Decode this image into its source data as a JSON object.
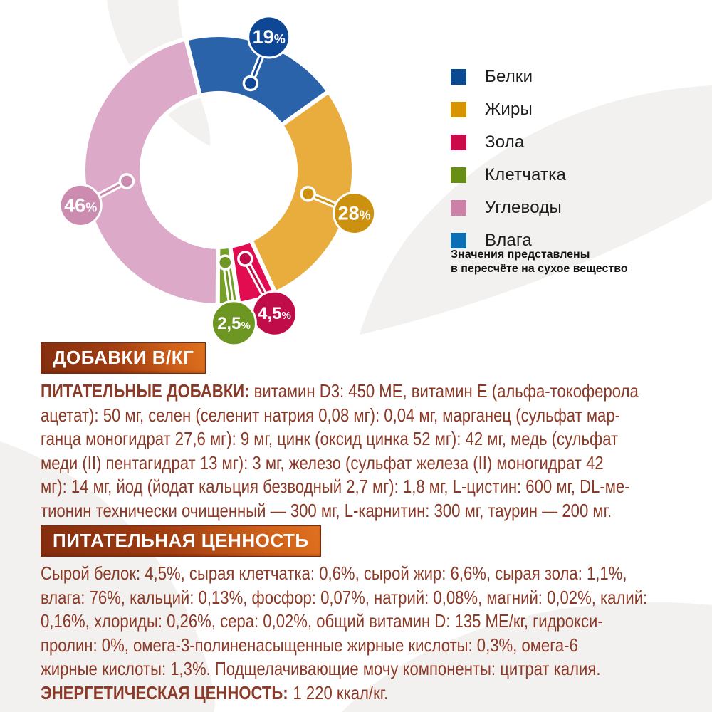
{
  "chart_data": {
    "type": "pie",
    "subtype": "donut",
    "title": "",
    "start_angle_deg": -14,
    "unit": "%",
    "slices": [
      {
        "label": "Белки",
        "value": 19,
        "display": "19%",
        "color": "#2b63ab",
        "badge_color": "#0d4795"
      },
      {
        "label": "Жиры",
        "value": 28,
        "display": "28%",
        "color": "#e9ad3e",
        "badge_color": "#cd9110"
      },
      {
        "label": "Зола",
        "value": 4.5,
        "display": "4,5%",
        "color": "#e20c51",
        "badge_color": "#c00d4a"
      },
      {
        "label": "Клетчатка",
        "value": 2.5,
        "display": "2,5%",
        "color": "#76a126",
        "badge_color": "#6d9722"
      },
      {
        "label": "Углеводы",
        "value": 46,
        "display": "46%",
        "color": "#dda9c8",
        "badge_color": "#cb8cb0"
      }
    ],
    "legend_position": "right",
    "legend": [
      {
        "label": "Белки",
        "color": "#0a4a93"
      },
      {
        "label": "Жиры",
        "color": "#d89400"
      },
      {
        "label": "Зола",
        "color": "#cc0a4a"
      },
      {
        "label": "Клетчатка",
        "color": "#678f15"
      },
      {
        "label": "Углеводы",
        "color": "#cc82a8"
      },
      {
        "label": "Влага",
        "color": "#0a6fb4"
      }
    ],
    "note_lines": [
      "Значения представлены",
      "в пересчёте на сухое вещество"
    ]
  },
  "sections": {
    "additives": {
      "header": "ДОБАВКИ В/КГ",
      "lead": "ПИТАТЕЛЬНЫЕ ДОБАВКИ:",
      "lines": [
        "витамин D3: 450 МЕ, витамин Е (альфа-токоферола",
        "ацетат): 50 мг, селен (селенит натрия 0,08 мг): 0,04 мг, марганец (сульфат мар-",
        "ганца моногидрат 27,6 мг): 9 мг, цинк (оксид цинка 52 мг): 42 мг, медь (сульфат",
        "меди (II) пентагидрат 13 мг): 3 мг, железо (сульфат железа (II) моногидрат 42",
        "мг): 14 мг, йод (йодат кальция безводный 2,7 мг): 1,8 мг, L-цистин: 600 мг, DL-ме-",
        "тионин технически очищенный — 300 мг, L-карнитин: 300 мг, таурин — 200 мг."
      ]
    },
    "nutrition": {
      "header": "ПИТАТЕЛЬНАЯ ЦЕННОСТЬ",
      "lines": [
        "Сырой белок: 4,5%, сырая клетчатка: 0,6%, сырой жир: 6,6%, сырая зола: 1,1%,",
        "влага: 76%, кальций: 0,13%, фосфор: 0,07%, натрий: 0,08%, магний: 0,02%, калий:",
        "0,16%, хлориды: 0,26%, сера: 0,02%, общий витамин D: 135 МЕ/кг, гидрокси-",
        "пролин: 0%, омега-3-полиненасыщенные жирные кислоты: 0,3%, омега-6",
        "жирные кислоты: 1,3%. Подщелачивающие мочу компоненты: цитрат калия."
      ],
      "energy_label": "ЭНЕРГЕТИЧЕСКАЯ ЦЕННОСТЬ:",
      "energy_value": "1 220 ккал/кг."
    }
  },
  "style": {
    "text_color": "#8b3a27",
    "header_gradient_start": "#832d0f",
    "header_gradient_end": "#e0711f",
    "background_swirl_color": "#f2f1ef"
  }
}
